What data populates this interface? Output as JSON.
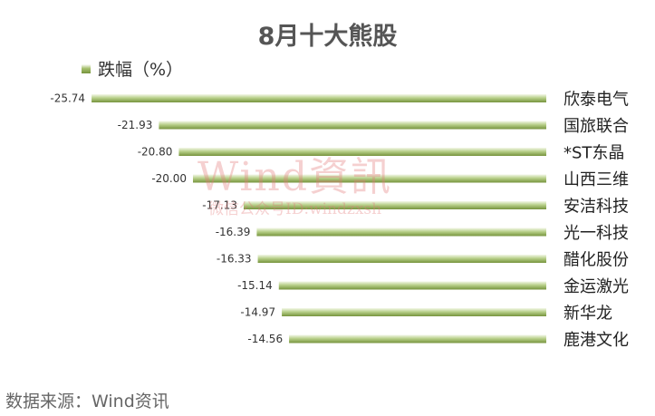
{
  "source": "数据来源：Wind资讯",
  "watermark": {
    "brand": "Wind資訊",
    "sub": "微信公众号ID:windzxsh"
  },
  "colors": {
    "bar_dark": "#76933c",
    "bar_light": "#b8d08a",
    "title": "#555555"
  },
  "chart_data": {
    "type": "bar",
    "orientation": "horizontal",
    "title": "8月十大熊股",
    "legend": "跌幅（%）",
    "legend_position": "top-left",
    "grid": false,
    "xlim": [
      -26,
      0
    ],
    "categories": [
      "欣泰电气",
      "国旅联合",
      "*ST东晶",
      "山西三维",
      "安洁科技",
      "光一科技",
      "醋化股份",
      "金运激光",
      "新华龙",
      "鹿港文化"
    ],
    "values": [
      -25.74,
      -21.93,
      -20.8,
      -20.0,
      -17.13,
      -16.39,
      -16.33,
      -15.14,
      -14.97,
      -14.56
    ],
    "value_labels": [
      "-25.74",
      "-21.93",
      "-20.80",
      "-20.00",
      "-17.13",
      "-16.39",
      "-16.33",
      "-15.14",
      "-14.97",
      "-14.56"
    ]
  }
}
